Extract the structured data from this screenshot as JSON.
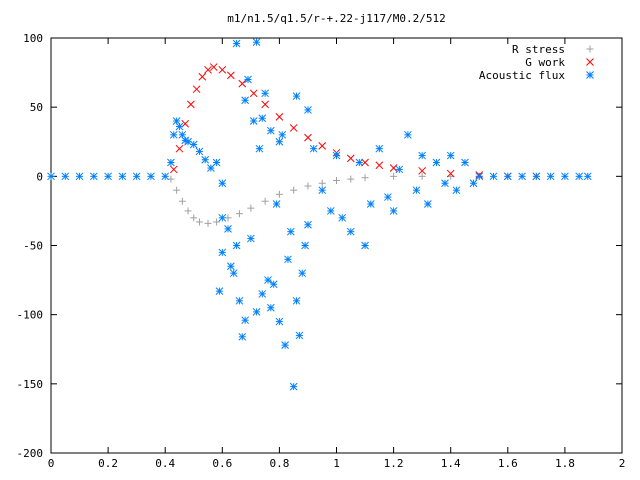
{
  "chart_data": {
    "type": "scatter",
    "title": "m1/n1.5/q1.5/r-+.22-j117/M0.2/512",
    "xlabel": "",
    "ylabel": "",
    "xlim": [
      0,
      2
    ],
    "ylim": [
      -200,
      100
    ],
    "x_ticks": [
      "0",
      "0.2",
      "0.4",
      "0.6",
      "0.8",
      "1",
      "1.2",
      "1.4",
      "1.6",
      "1.8",
      "2"
    ],
    "y_ticks": [
      "100",
      "50",
      "0",
      "-50",
      "-100",
      "-150",
      "-200"
    ],
    "legend_position": "top-right",
    "grid": false,
    "series": [
      {
        "name": "R stress",
        "marker": "plus",
        "color": "#a0a0a0",
        "points": [
          [
            0.42,
            -2
          ],
          [
            0.44,
            -10
          ],
          [
            0.46,
            -18
          ],
          [
            0.48,
            -25
          ],
          [
            0.5,
            -30
          ],
          [
            0.52,
            -33
          ],
          [
            0.55,
            -34
          ],
          [
            0.58,
            -33
          ],
          [
            0.62,
            -30
          ],
          [
            0.66,
            -27
          ],
          [
            0.7,
            -23
          ],
          [
            0.75,
            -18
          ],
          [
            0.8,
            -13
          ],
          [
            0.85,
            -10
          ],
          [
            0.9,
            -7
          ],
          [
            0.95,
            -5
          ],
          [
            1.0,
            -3
          ],
          [
            1.05,
            -2
          ],
          [
            1.1,
            -1
          ],
          [
            1.2,
            0
          ],
          [
            1.3,
            0
          ],
          [
            1.4,
            0
          ],
          [
            1.5,
            0
          ],
          [
            1.6,
            0
          ],
          [
            1.7,
            0
          ]
        ]
      },
      {
        "name": "G work",
        "marker": "cross",
        "color": "#ff0000",
        "points": [
          [
            0.43,
            5
          ],
          [
            0.45,
            20
          ],
          [
            0.47,
            38
          ],
          [
            0.49,
            52
          ],
          [
            0.51,
            63
          ],
          [
            0.53,
            72
          ],
          [
            0.55,
            77
          ],
          [
            0.57,
            79
          ],
          [
            0.6,
            77
          ],
          [
            0.63,
            73
          ],
          [
            0.67,
            67
          ],
          [
            0.71,
            60
          ],
          [
            0.75,
            52
          ],
          [
            0.8,
            43
          ],
          [
            0.85,
            35
          ],
          [
            0.9,
            28
          ],
          [
            0.95,
            22
          ],
          [
            1.0,
            17
          ],
          [
            1.05,
            13
          ],
          [
            1.1,
            10
          ],
          [
            1.15,
            8
          ],
          [
            1.2,
            6
          ],
          [
            1.3,
            4
          ],
          [
            1.4,
            2
          ],
          [
            1.5,
            1
          ],
          [
            1.6,
            0
          ],
          [
            1.7,
            0
          ]
        ]
      },
      {
        "name": "Acoustic flux",
        "marker": "star",
        "color": "#0080ff",
        "points": [
          [
            0.0,
            0
          ],
          [
            0.05,
            0
          ],
          [
            0.1,
            0
          ],
          [
            0.15,
            0
          ],
          [
            0.2,
            0
          ],
          [
            0.25,
            0
          ],
          [
            0.3,
            0
          ],
          [
            0.35,
            0
          ],
          [
            0.4,
            0
          ],
          [
            0.42,
            10
          ],
          [
            0.43,
            30
          ],
          [
            0.44,
            40
          ],
          [
            0.45,
            36
          ],
          [
            0.46,
            30
          ],
          [
            0.47,
            26
          ],
          [
            0.48,
            25
          ],
          [
            0.5,
            23
          ],
          [
            0.52,
            18
          ],
          [
            0.54,
            12
          ],
          [
            0.56,
            6
          ],
          [
            0.58,
            10
          ],
          [
            0.6,
            -5
          ],
          [
            0.6,
            -30
          ],
          [
            0.6,
            -55
          ],
          [
            0.59,
            -83
          ],
          [
            0.62,
            -38
          ],
          [
            0.63,
            -65
          ],
          [
            0.64,
            -70
          ],
          [
            0.65,
            -50
          ],
          [
            0.66,
            -90
          ],
          [
            0.67,
            -116
          ],
          [
            0.68,
            -104
          ],
          [
            0.69,
            70
          ],
          [
            0.7,
            -45
          ],
          [
            0.71,
            40
          ],
          [
            0.72,
            -98
          ],
          [
            0.73,
            20
          ],
          [
            0.74,
            -85
          ],
          [
            0.75,
            60
          ],
          [
            0.76,
            -75
          ],
          [
            0.77,
            -95
          ],
          [
            0.78,
            -78
          ],
          [
            0.79,
            -20
          ],
          [
            0.8,
            -105
          ],
          [
            0.81,
            30
          ],
          [
            0.82,
            -122
          ],
          [
            0.83,
            -60
          ],
          [
            0.84,
            -40
          ],
          [
            0.85,
            -152
          ],
          [
            0.86,
            -90
          ],
          [
            0.87,
            -115
          ],
          [
            0.88,
            -70
          ],
          [
            0.89,
            -50
          ],
          [
            0.9,
            -35
          ],
          [
            0.72,
            97
          ],
          [
            0.65,
            96
          ],
          [
            0.68,
            55
          ],
          [
            0.74,
            42
          ],
          [
            0.77,
            33
          ],
          [
            0.8,
            25
          ],
          [
            0.86,
            58
          ],
          [
            0.9,
            48
          ],
          [
            0.92,
            20
          ],
          [
            0.95,
            -10
          ],
          [
            0.98,
            -25
          ],
          [
            1.0,
            15
          ],
          [
            1.02,
            -30
          ],
          [
            1.05,
            -40
          ],
          [
            1.08,
            10
          ],
          [
            1.1,
            -50
          ],
          [
            1.12,
            -20
          ],
          [
            1.15,
            20
          ],
          [
            1.18,
            -15
          ],
          [
            1.2,
            -25
          ],
          [
            1.22,
            5
          ],
          [
            1.25,
            30
          ],
          [
            1.28,
            -10
          ],
          [
            1.3,
            15
          ],
          [
            1.32,
            -20
          ],
          [
            1.35,
            10
          ],
          [
            1.38,
            -5
          ],
          [
            1.4,
            15
          ],
          [
            1.42,
            -10
          ],
          [
            1.45,
            10
          ],
          [
            1.48,
            -5
          ],
          [
            1.5,
            0
          ],
          [
            1.55,
            0
          ],
          [
            1.6,
            0
          ],
          [
            1.65,
            0
          ],
          [
            1.7,
            0
          ],
          [
            1.75,
            0
          ],
          [
            1.8,
            0
          ],
          [
            1.85,
            0
          ],
          [
            1.88,
            0
          ]
        ]
      }
    ]
  }
}
